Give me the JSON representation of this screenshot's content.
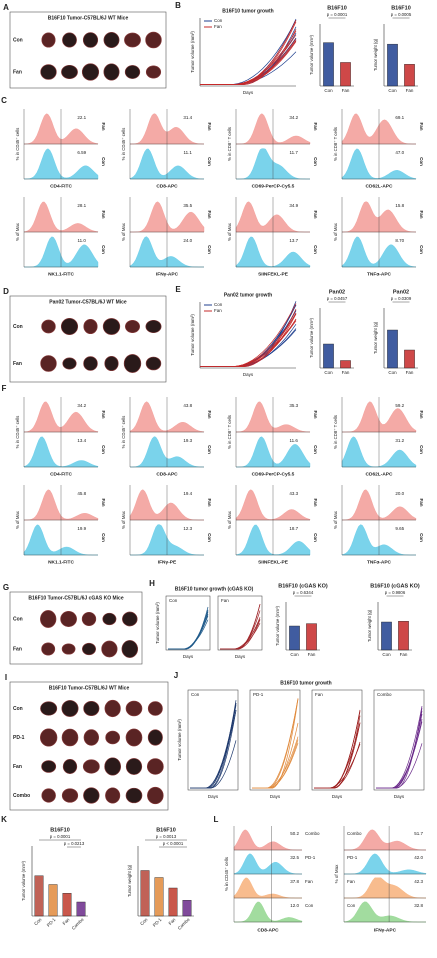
{
  "A": {
    "letter": "A",
    "title": "B16F10 Tumor-C57BL/6J WT Mice",
    "rows": [
      "Con",
      "Fan"
    ]
  },
  "B": {
    "letter": "B",
    "growth": {
      "title": "B16F10 tumor growth",
      "ylabel": "Tumor volume (mm³)",
      "xlabel": "Days",
      "series": [
        {
          "name": "Con",
          "color": "#1f3f8f"
        },
        {
          "name": "Fan",
          "color": "#c62828"
        }
      ]
    },
    "bars": [
      {
        "title": "B16F10",
        "p": [
          "p = 0.0001"
        ],
        "ylabel": "Tumor volume (mm³)",
        "categories": [
          "Con",
          "Fan"
        ],
        "values": [
          1750,
          950
        ],
        "ylim": [
          0,
          2500
        ],
        "colors": [
          "#1f3f8f",
          "#c62828"
        ]
      },
      {
        "title": "B16F10",
        "p": [
          "p = 0.0005"
        ],
        "ylabel": "Tumor weight (g)",
        "categories": [
          "Con",
          "Fan"
        ],
        "values": [
          1.35,
          0.7
        ],
        "ylim": [
          0,
          2
        ],
        "colors": [
          "#1f3f8f",
          "#c62828"
        ]
      }
    ]
  },
  "C": {
    "letter": "C",
    "groups": [
      {
        "name": "Fan",
        "color": "#f29b96"
      },
      {
        "name": "Con",
        "color": "#63cbe8"
      }
    ],
    "rows": [
      [
        {
          "ylabel": "% in CD45⁺ cells",
          "xlabel": "CD4-FITC",
          "values": [
            "22.1",
            "6.59"
          ]
        },
        {
          "ylabel": "% in CD45⁺ cells",
          "xlabel": "CD8-APC",
          "values": [
            "31.4",
            "11.1"
          ]
        },
        {
          "ylabel": "% in CD8⁺ T cells",
          "xlabel": "CD69-PerCP-Cy5.5",
          "values": [
            "34.2",
            "11.7"
          ]
        },
        {
          "ylabel": "% in CD8⁺ T cells",
          "xlabel": "CD62L-APC",
          "values": [
            "69.1",
            "47.0"
          ]
        }
      ],
      [
        {
          "ylabel": "% of Max",
          "xlabel": "NK1.1-FITC",
          "values": [
            "28.1",
            "11.0"
          ]
        },
        {
          "ylabel": "% of Max",
          "xlabel": "IFNγ-APC",
          "values": [
            "35.5",
            "24.0"
          ]
        },
        {
          "ylabel": "% of Max",
          "xlabel": "SIINFEKL-PE",
          "values": [
            "34.9",
            "13.7"
          ]
        },
        {
          "ylabel": "% of Max",
          "xlabel": "TNFα-APC",
          "values": [
            "15.8",
            "8.70"
          ]
        }
      ]
    ]
  },
  "D": {
    "letter": "D",
    "title": "Pan02 Tumor-C57BL/6J WT Mice",
    "rows": [
      "Con",
      "Fan"
    ]
  },
  "E": {
    "letter": "E",
    "growth": {
      "title": "Pan02 tumor growth",
      "ylabel": "Tumor volume (mm³)",
      "xlabel": "Days",
      "series": [
        {
          "name": "Con",
          "color": "#1f3f8f"
        },
        {
          "name": "Fan",
          "color": "#c62828"
        }
      ]
    },
    "bars": [
      {
        "title": "Pan02",
        "p": [
          "p = 0.0457"
        ],
        "ylabel": "Tumor volume (mm³)",
        "categories": [
          "Con",
          "Fan"
        ],
        "values": [
          800,
          250
        ],
        "ylim": [
          0,
          2000
        ],
        "colors": [
          "#1f3f8f",
          "#c62828"
        ]
      },
      {
        "title": "Pan02",
        "p": [
          "p = 0.0309"
        ],
        "ylabel": "Tumor weight (g)",
        "categories": [
          "Con",
          "Fan"
        ],
        "values": [
          0.95,
          0.45
        ],
        "ylim": [
          0,
          1.5
        ],
        "colors": [
          "#1f3f8f",
          "#c62828"
        ]
      }
    ]
  },
  "F": {
    "letter": "F",
    "groups": [
      {
        "name": "Fan",
        "color": "#f29b96"
      },
      {
        "name": "Con",
        "color": "#63cbe8"
      }
    ],
    "rows": [
      [
        {
          "ylabel": "% in CD45⁺ cells",
          "xlabel": "CD4-FITC",
          "values": [
            "34.2",
            "13.4"
          ]
        },
        {
          "ylabel": "% in CD45⁺ cells",
          "xlabel": "CD8-APC",
          "values": [
            "43.8",
            "19.3"
          ]
        },
        {
          "ylabel": "% in CD8⁺ T cells",
          "xlabel": "CD69-PerCP-Cy5.5",
          "values": [
            "35.3",
            "11.6"
          ]
        },
        {
          "ylabel": "% in CD8⁺ T cells",
          "xlabel": "CD62L-APC",
          "values": [
            "59.2",
            "31.2"
          ]
        }
      ],
      [
        {
          "ylabel": "% of Max",
          "xlabel": "NK1.1-FITC",
          "values": [
            "45.8",
            "19.9"
          ]
        },
        {
          "ylabel": "% of Max",
          "xlabel": "IFNγ-PE",
          "values": [
            "19.4",
            "12.3"
          ]
        },
        {
          "ylabel": "% of Max",
          "xlabel": "SIINFEKL-PE",
          "values": [
            "43.3",
            "18.7"
          ]
        },
        {
          "ylabel": "% of Max",
          "xlabel": "TNFα-APC",
          "values": [
            "20.0",
            "9.65"
          ]
        }
      ]
    ]
  },
  "G": {
    "letter": "G",
    "title": "B16F10 Tumor-C57BL/6J cGAS KO Mice",
    "rows": [
      "Con",
      "Fan"
    ]
  },
  "H": {
    "letter": "H",
    "growth": {
      "title": "B16F10 tumor growth (cGAS KO)",
      "ylabel": "Tumor volume (mm³)",
      "xlabel": "Days",
      "series": [
        {
          "name": "Con",
          "color": "#1f5a8a"
        },
        {
          "name": "Fan",
          "color": "#a0282c"
        }
      ]
    },
    "bars": [
      {
        "title": "B16F10 (cGAS KO)",
        "p": [
          "p = 0.6344"
        ],
        "ylabel": "Tumor volume (mm³)",
        "categories": [
          "Con",
          "Fan"
        ],
        "values": [
          1000,
          1100
        ],
        "ylim": [
          0,
          2000
        ],
        "colors": [
          "#1f3f8f",
          "#c62828"
        ]
      },
      {
        "title": "B16F10 (cGAS KO)",
        "p": [
          "p = 0.9806"
        ],
        "ylabel": "Tumor weight (g)",
        "categories": [
          "Con",
          "Fan"
        ],
        "values": [
          0.7,
          0.72
        ],
        "ylim": [
          0,
          1.2
        ],
        "colors": [
          "#1f3f8f",
          "#c62828"
        ]
      }
    ]
  },
  "I": {
    "letter": "I",
    "title": "B16F10 Tumor-C57BL/6J WT Mice",
    "rows": [
      "Con",
      "PD-1",
      "Fan",
      "Combo"
    ]
  },
  "J": {
    "letter": "J",
    "growth": {
      "title": "B16F10 tumor growth",
      "ylabel": "Tumor volume (mm³)",
      "xlabel": "Days",
      "series": [
        {
          "name": "Con",
          "color": "#1f3a6e"
        },
        {
          "name": "PD-1",
          "color": "#e08a3c"
        },
        {
          "name": "Fan",
          "color": "#9b1c1c"
        },
        {
          "name": "Combo",
          "color": "#6a2a8a"
        }
      ]
    }
  },
  "K": {
    "letter": "K",
    "bars": [
      {
        "title": "B16F10",
        "p": [
          "p = 0.0001",
          "p = 0.0213"
        ],
        "ylabel": "Tumor volume (mm³)",
        "categories": [
          "Con",
          "PD-1",
          "Fan",
          "Combo"
        ],
        "values": [
          1150,
          900,
          650,
          400
        ],
        "ylim": [
          0,
          2000
        ],
        "colors": [
          "#b5463a",
          "#e08a3c",
          "#c0392b",
          "#6a2a8a"
        ]
      },
      {
        "title": "B16F10",
        "p": [
          "p = 0.0013",
          "p < 0.0001"
        ],
        "ylabel": "Tumor weight (g)",
        "categories": [
          "Con",
          "PD-1",
          "Fan",
          "Combo"
        ],
        "values": [
          1.3,
          1.1,
          0.8,
          0.45
        ],
        "ylim": [
          0,
          2
        ],
        "colors": [
          "#b5463a",
          "#e08a3c",
          "#c0392b",
          "#6a2a8a"
        ]
      }
    ]
  },
  "L": {
    "letter": "L",
    "groups": [
      {
        "name": "Combo",
        "color": "#f29b96"
      },
      {
        "name": "PD-1",
        "color": "#63cbe8"
      },
      {
        "name": "Fan",
        "color": "#f7b07a"
      },
      {
        "name": "Con",
        "color": "#92d68e"
      }
    ],
    "panels": [
      {
        "ylabel": "% in CD45⁺ cells",
        "xlabel": "CD8-APC",
        "values": [
          "50.2",
          "32.5",
          "37.8",
          "12.0"
        ]
      },
      {
        "ylabel": "% of Max",
        "xlabel": "IFNγ-APC",
        "values": [
          "51.7",
          "42.0",
          "42.3",
          "32.8"
        ]
      }
    ]
  }
}
